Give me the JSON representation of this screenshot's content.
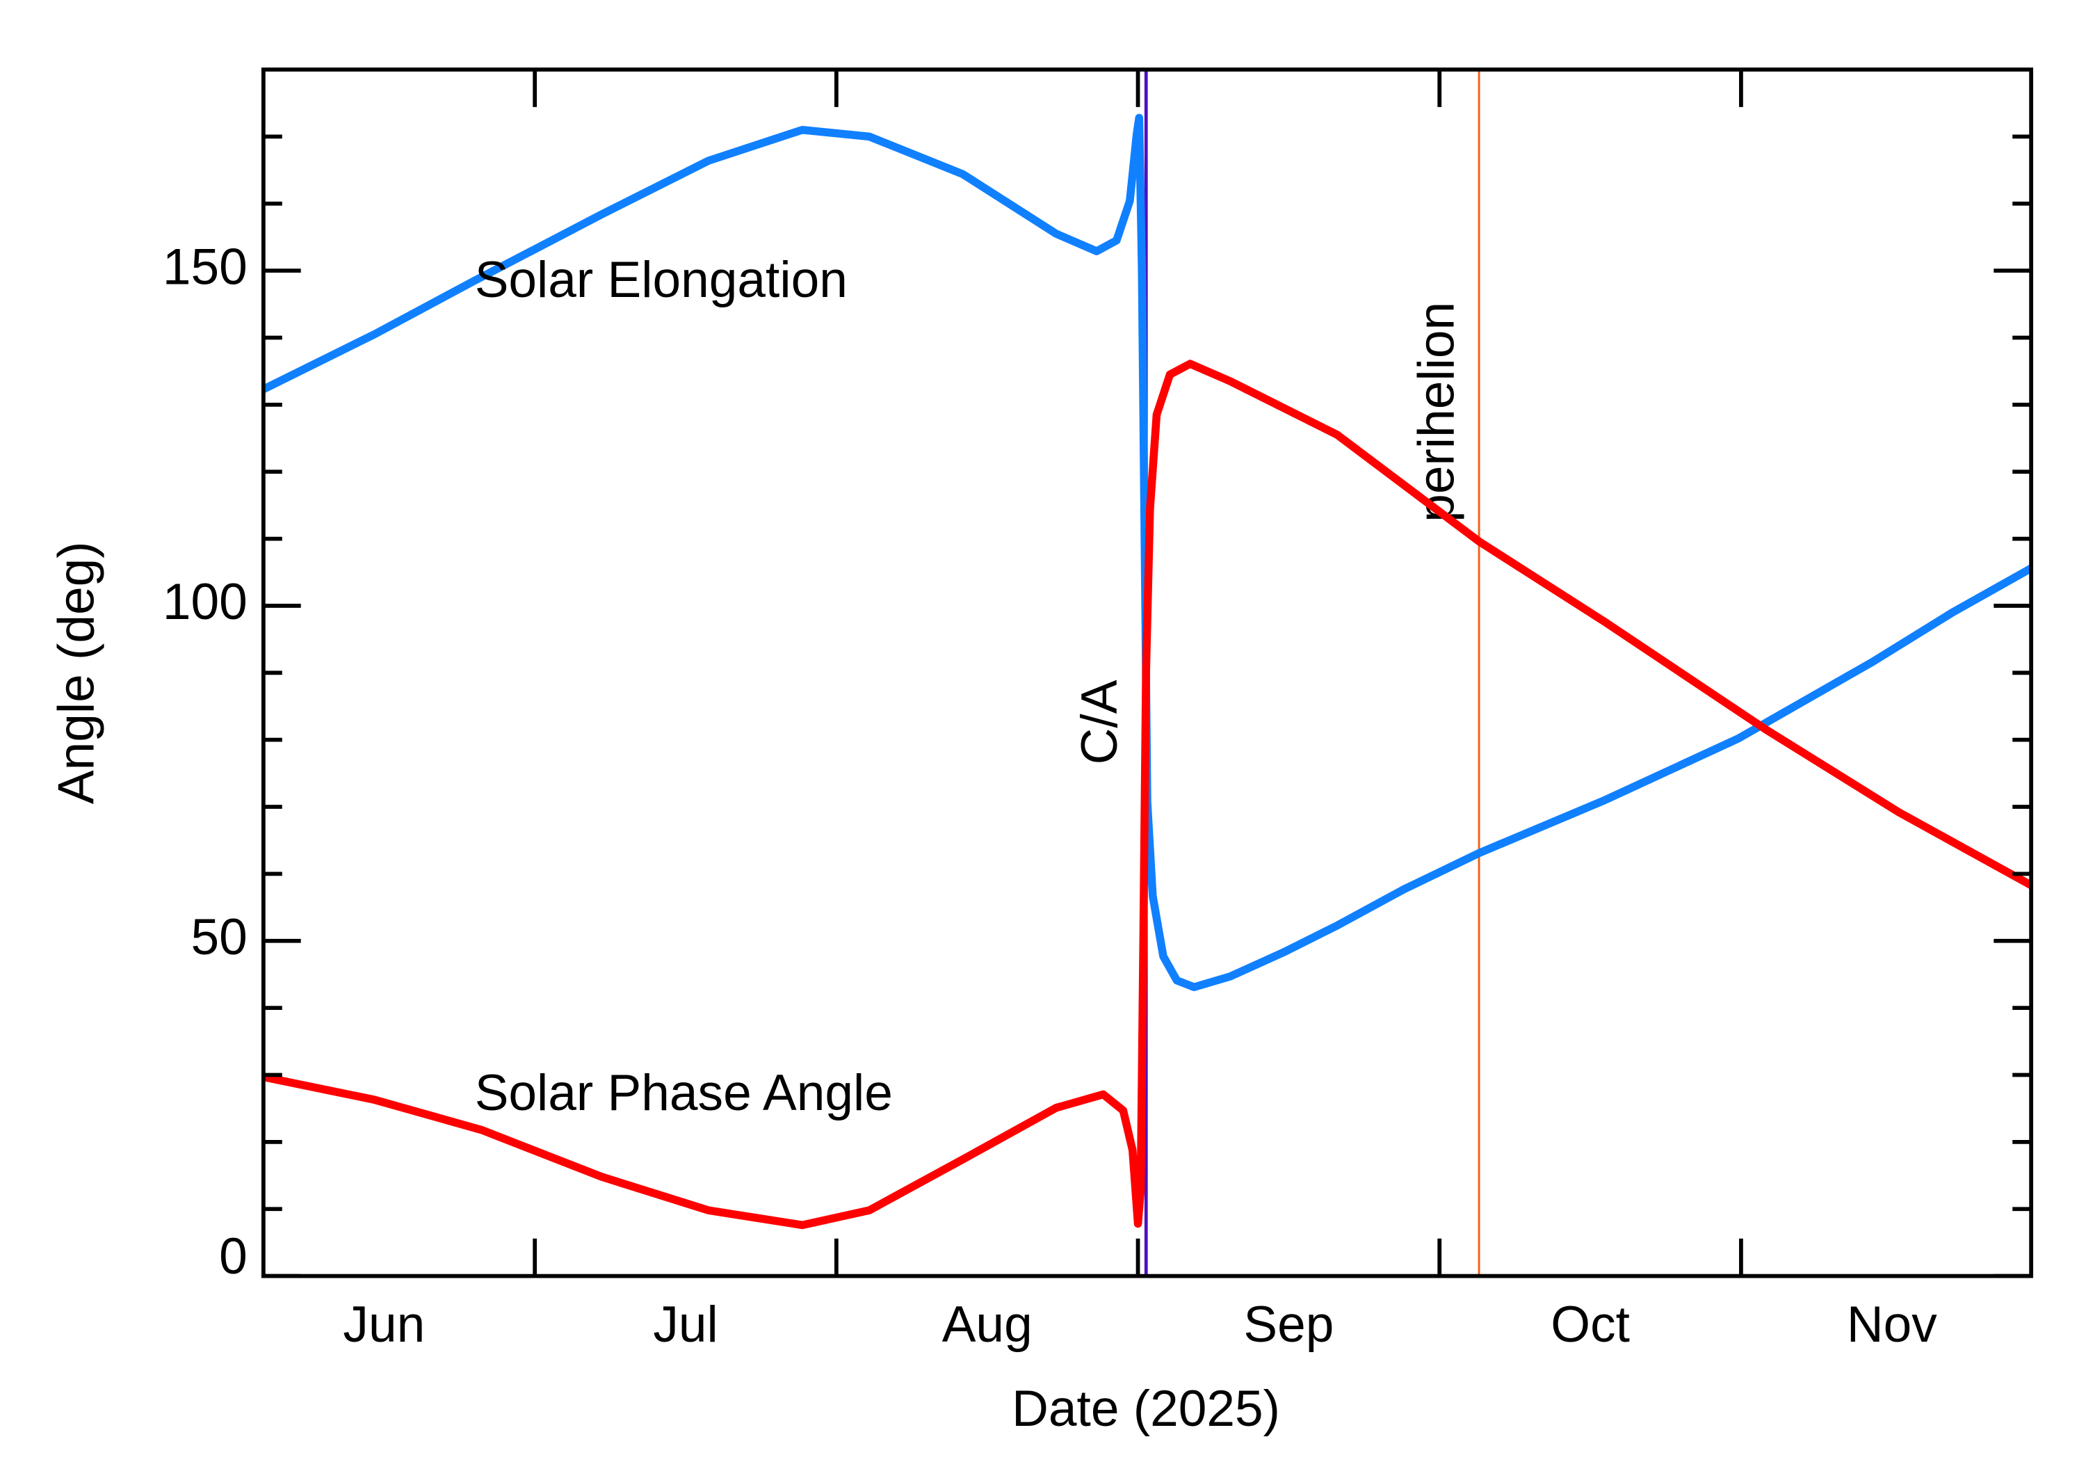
{
  "chart_data": {
    "type": "line",
    "xlabel": "Date (2025)",
    "ylabel": "Angle (deg)",
    "xlim": [
      6.1,
      11.962
    ],
    "ylim": [
      0,
      180
    ],
    "xticks": [
      {
        "value": 6.5,
        "label": "Jun"
      },
      {
        "value": 7.5,
        "label": "Jul"
      },
      {
        "value": 8.5,
        "label": "Aug"
      },
      {
        "value": 9.5,
        "label": "Sep"
      },
      {
        "value": 10.5,
        "label": "Oct"
      },
      {
        "value": 11.5,
        "label": "Nov"
      }
    ],
    "xtick_marks": [
      7,
      8,
      9,
      10,
      11
    ],
    "yticks": [
      0,
      50,
      100,
      150
    ],
    "yminor_ticks": [
      10,
      20,
      30,
      40,
      60,
      70,
      80,
      90,
      110,
      120,
      130,
      140,
      160,
      170
    ],
    "series": [
      {
        "name": "Solar Elongation",
        "color": "#1080ff",
        "x": [
          6.1,
          6.468,
          6.8,
          7.222,
          7.576,
          7.887,
          8.109,
          8.419,
          8.729,
          8.863,
          8.929,
          8.973,
          8.996,
          9.004,
          9.013,
          9.022,
          9.031,
          9.049,
          9.084,
          9.129,
          9.186,
          9.306,
          9.483,
          9.661,
          9.882,
          10.131,
          10.548,
          10.991,
          11.435,
          11.701,
          11.962
        ],
        "values": [
          132.3,
          140.5,
          148.5,
          158.4,
          166.4,
          171.0,
          170.0,
          164.4,
          155.5,
          152.9,
          154.5,
          160.4,
          170.4,
          172.8,
          150.5,
          110.6,
          70.7,
          56.7,
          47.7,
          44.1,
          43.1,
          44.7,
          48.3,
          52.3,
          57.7,
          63.1,
          71.0,
          80.2,
          91.6,
          99.0,
          105.6
        ]
      },
      {
        "name": "Solar Phase Angle",
        "color": "#ff0000",
        "x": [
          6.1,
          6.468,
          6.823,
          7.222,
          7.576,
          7.887,
          8.109,
          8.419,
          8.729,
          8.885,
          8.951,
          8.982,
          9.0,
          9.009,
          9.018,
          9.027,
          9.04,
          9.062,
          9.106,
          9.173,
          9.306,
          9.661,
          10.131,
          10.548,
          11.08,
          11.523,
          11.962
        ],
        "values": [
          29.7,
          26.3,
          21.8,
          14.8,
          9.8,
          7.6,
          9.8,
          17.4,
          25.1,
          27.1,
          24.7,
          18.8,
          7.8,
          12.8,
          50.7,
          90.6,
          114.5,
          128.5,
          134.5,
          136.1,
          133.5,
          125.5,
          109.6,
          97.6,
          81.6,
          69.2,
          58.3
        ]
      }
    ],
    "vlines": [
      {
        "x": 9.027,
        "label": "C/A",
        "color": "#5010c0"
      },
      {
        "x": 10.131,
        "label": "perihelion",
        "color": "#f06010"
      }
    ]
  }
}
